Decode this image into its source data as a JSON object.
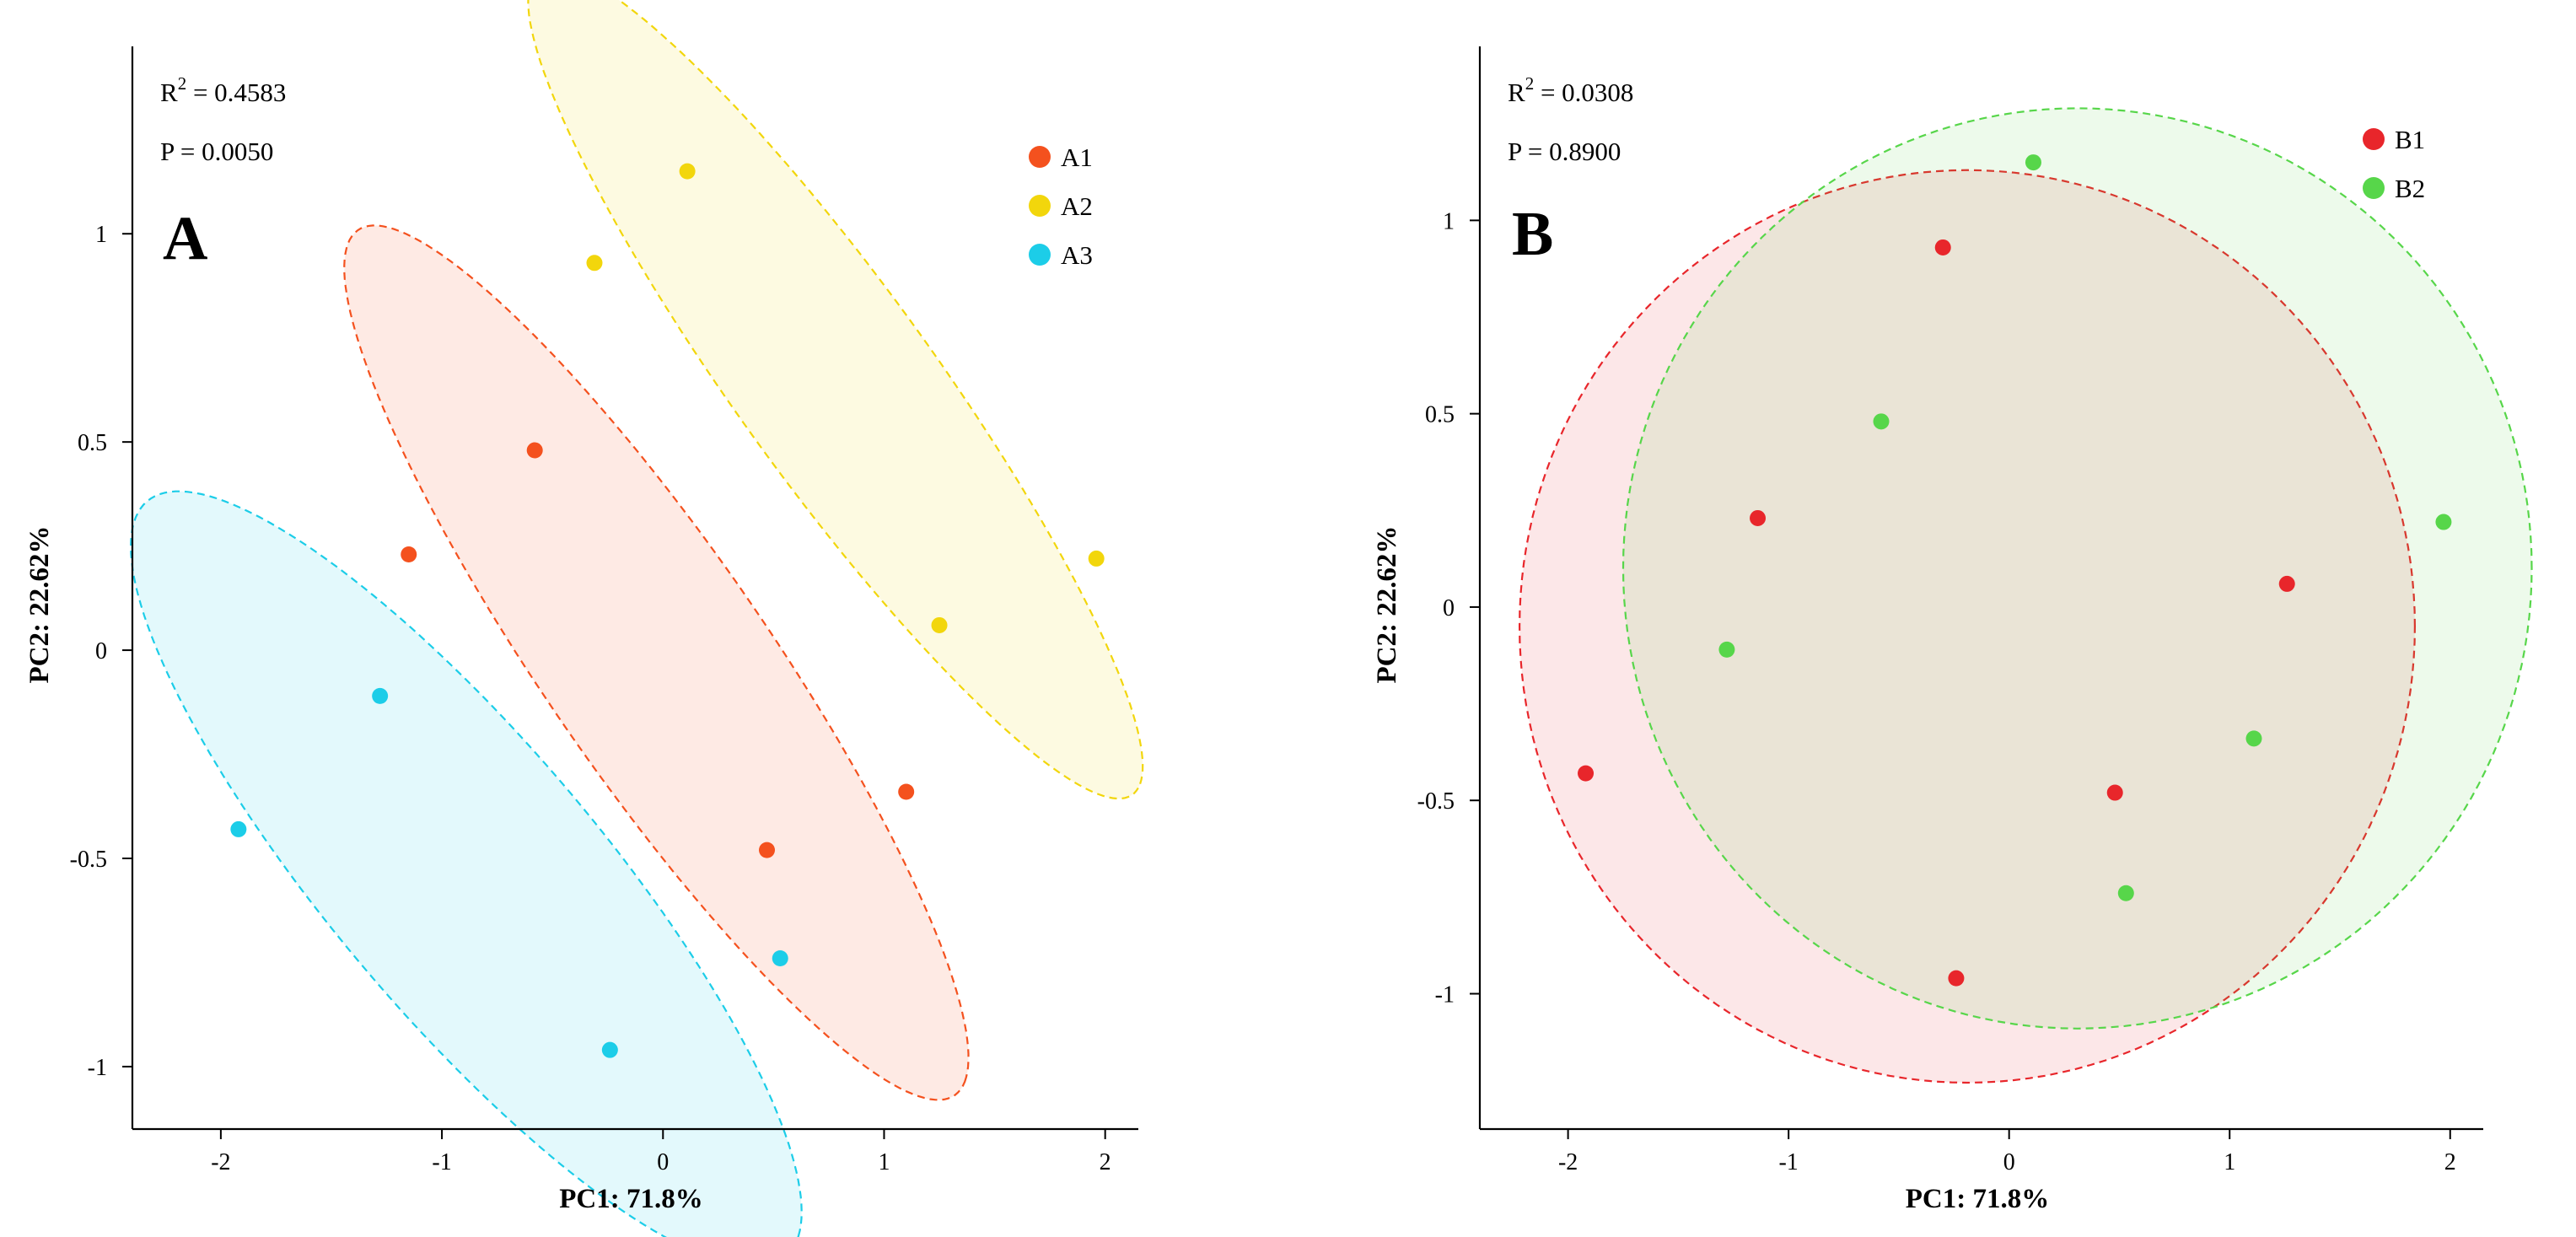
{
  "chart_data": [
    {
      "type": "scatter",
      "panel": "A",
      "xlabel": "PC1: 71.8%",
      "ylabel": "PC2: 22.62%",
      "xlim": [
        -2.4,
        2.15
      ],
      "ylim": [
        -1.15,
        1.45
      ],
      "xticks": [
        -2,
        -1,
        0,
        1,
        2
      ],
      "yticks": [
        -1,
        -0.5,
        0,
        0.5,
        1
      ],
      "stats": {
        "r2_prefix": "R",
        "r2_sup": "2",
        "r2_value": " = 0.4583",
        "p_text": "P = 0.0050"
      },
      "legend_position": "top-right",
      "series": [
        {
          "name": "A1",
          "color": "#F4511E",
          "fill": "rgba(244,81,30,0.12)",
          "points": [
            [
              -0.58,
              0.48
            ],
            [
              -1.15,
              0.23
            ],
            [
              1.1,
              -0.34
            ],
            [
              0.47,
              -0.48
            ]
          ],
          "ellipse": {
            "cx": -0.03,
            "cy": -0.03,
            "rx": 1.72,
            "ry": 0.37,
            "angle_deg": -35.8
          }
        },
        {
          "name": "A2",
          "color": "#F2D60C",
          "fill": "rgba(242,214,12,0.12)",
          "points": [
            [
              0.11,
              1.15
            ],
            [
              -0.31,
              0.93
            ],
            [
              1.96,
              0.22
            ],
            [
              1.25,
              0.06
            ]
          ],
          "ellipse": {
            "cx": 0.78,
            "cy": 0.64,
            "rx": 1.68,
            "ry": 0.32,
            "angle_deg": -34.9
          }
        },
        {
          "name": "A3",
          "color": "#1CCDE8",
          "fill": "rgba(28,205,232,0.12)",
          "points": [
            [
              -1.92,
              -0.43
            ],
            [
              -1.28,
              -0.11
            ],
            [
              0.53,
              -0.74
            ],
            [
              -0.24,
              -0.96
            ]
          ],
          "ellipse": {
            "cx": -0.89,
            "cy": -0.55,
            "rx": 1.73,
            "ry": 0.42,
            "angle_deg": -29.7
          }
        }
      ]
    },
    {
      "type": "scatter",
      "panel": "B",
      "xlabel": "PC1: 71.8%",
      "ylabel": "PC2: 22.62%",
      "xlim": [
        -2.4,
        2.15
      ],
      "ylim": [
        -1.35,
        1.45
      ],
      "xticks": [
        -2,
        -1,
        0,
        1,
        2
      ],
      "yticks": [
        -1,
        -0.5,
        0,
        0.5,
        1
      ],
      "stats": {
        "r2_prefix": "R",
        "r2_sup": "2",
        "r2_value": " = 0.0308",
        "p_text": "P = 0.8900"
      },
      "legend_position": "top-right",
      "series": [
        {
          "name": "B1",
          "color": "#E8262B",
          "fill": "rgba(232,38,43,0.11)",
          "points": [
            [
              -0.3,
              0.93
            ],
            [
              -1.14,
              0.23
            ],
            [
              1.26,
              0.06
            ],
            [
              -1.92,
              -0.43
            ],
            [
              0.48,
              -0.48
            ],
            [
              -0.24,
              -0.96
            ]
          ],
          "ellipse": {
            "cx": -0.19,
            "cy": -0.05,
            "rx": 2.03,
            "ry": 1.18,
            "angle_deg": 0
          }
        },
        {
          "name": "B2",
          "color": "#57D64A",
          "fill": "rgba(87,214,74,0.11)",
          "points": [
            [
              0.11,
              1.15
            ],
            [
              -0.58,
              0.48
            ],
            [
              1.97,
              0.22
            ],
            [
              -1.28,
              -0.11
            ],
            [
              1.11,
              -0.34
            ],
            [
              0.53,
              -0.74
            ]
          ],
          "ellipse": {
            "cx": 0.31,
            "cy": 0.1,
            "rx": 2.06,
            "ry": 1.19,
            "angle_deg": 0
          }
        }
      ]
    }
  ]
}
